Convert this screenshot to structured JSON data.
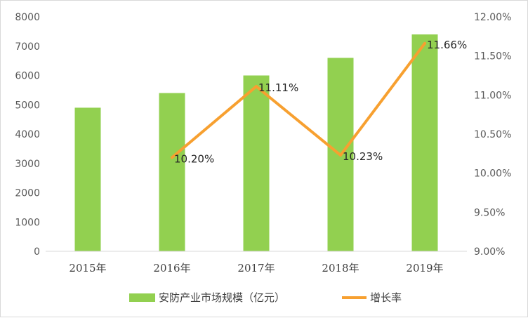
{
  "chart_data": {
    "type": "bar+line",
    "title": "",
    "categories": [
      "2015年",
      "2016年",
      "2017年",
      "2018年",
      "2019年"
    ],
    "series": [
      {
        "name": "安防产业市场规模（亿元）",
        "type": "bar",
        "axis": "left",
        "color": "#92d050",
        "values": [
          4900,
          5400,
          6000,
          6600,
          7400
        ]
      },
      {
        "name": "增长率",
        "type": "line",
        "axis": "right",
        "color": "#f7a030",
        "values": [
          null,
          10.2,
          11.11,
          10.23,
          11.66
        ],
        "labels": [
          "",
          "10.20%",
          "11.11%",
          "10.23%",
          "11.66%"
        ]
      }
    ],
    "y_left": {
      "min": 0,
      "max": 8000,
      "ticks": [
        "0",
        "1000",
        "2000",
        "3000",
        "4000",
        "5000",
        "6000",
        "7000",
        "8000"
      ]
    },
    "y_right": {
      "min": 9.0,
      "max": 12.0,
      "ticks": [
        "9.00%",
        "9.50%",
        "10.00%",
        "10.50%",
        "11.00%",
        "11.50%",
        "12.00%"
      ]
    },
    "grid": false,
    "legend_position": "bottom"
  }
}
